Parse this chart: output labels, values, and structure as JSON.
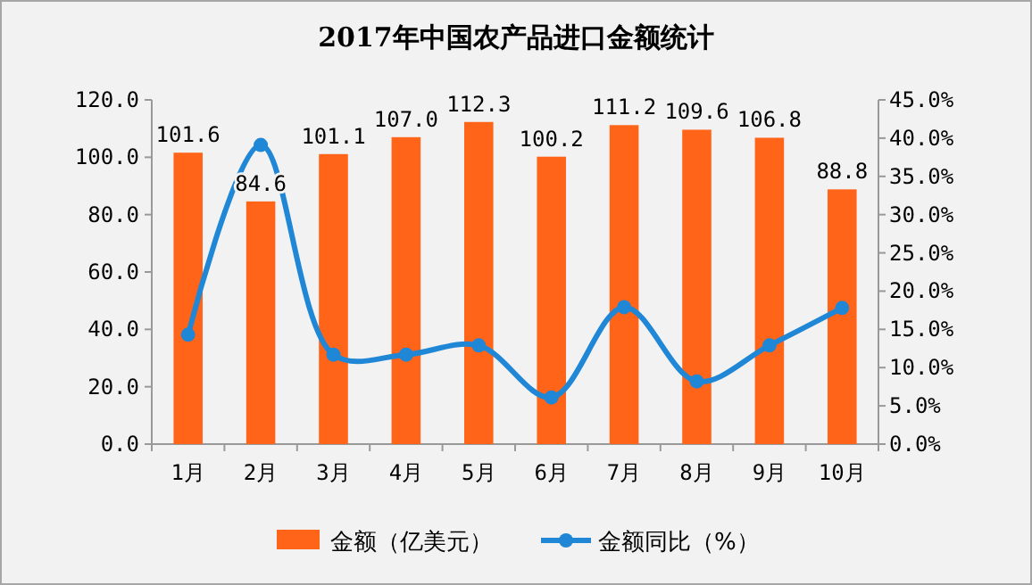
{
  "chart_data": {
    "type": "bar",
    "title": "2017年中国农产品进口金额统计",
    "categories": [
      "1月",
      "2月",
      "3月",
      "4月",
      "5月",
      "6月",
      "7月",
      "8月",
      "9月",
      "10月"
    ],
    "series": [
      {
        "name": "金额（亿美元）",
        "color": "#ff6418",
        "values": [
          101.6,
          84.6,
          101.1,
          107.0,
          112.3,
          100.2,
          111.2,
          109.6,
          106.8,
          88.8
        ]
      },
      {
        "name": "金额同比（%）",
        "type": "line",
        "axis": "y2",
        "color": "#1f87d6",
        "values": [
          14.3,
          39.1,
          11.7,
          11.7,
          12.9,
          6.1,
          17.9,
          8.2,
          12.9,
          17.8
        ]
      }
    ],
    "ylim": [
      0,
      120
    ],
    "yticks": [
      {
        "value": 0,
        "label": "0.0"
      },
      {
        "value": 20,
        "label": "20.0"
      },
      {
        "value": 40,
        "label": "40.0"
      },
      {
        "value": 60,
        "label": "60.0"
      },
      {
        "value": 80,
        "label": "80.0"
      },
      {
        "value": 100,
        "label": "100.0"
      },
      {
        "value": 120,
        "label": "120.0"
      }
    ],
    "y2lim": [
      0,
      45
    ],
    "y2ticks": [
      {
        "value": 0,
        "label": "0.0%"
      },
      {
        "value": 5,
        "label": "5.0%"
      },
      {
        "value": 10,
        "label": "10.0%"
      },
      {
        "value": 15,
        "label": "15.0%"
      },
      {
        "value": 20,
        "label": "20.0%"
      },
      {
        "value": 25,
        "label": "25.0%"
      },
      {
        "value": 30,
        "label": "30.0%"
      },
      {
        "value": 35,
        "label": "35.0%"
      },
      {
        "value": 40,
        "label": "40.0%"
      },
      {
        "value": 45,
        "label": "45.0%"
      }
    ],
    "value_labels": [
      "101.6",
      "84.6",
      "101.1",
      "107.0",
      "112.3",
      "100.2",
      "111.2",
      "109.6",
      "106.8",
      "88.8"
    ],
    "marker": "circle",
    "legend": "bottom",
    "grid": false
  }
}
